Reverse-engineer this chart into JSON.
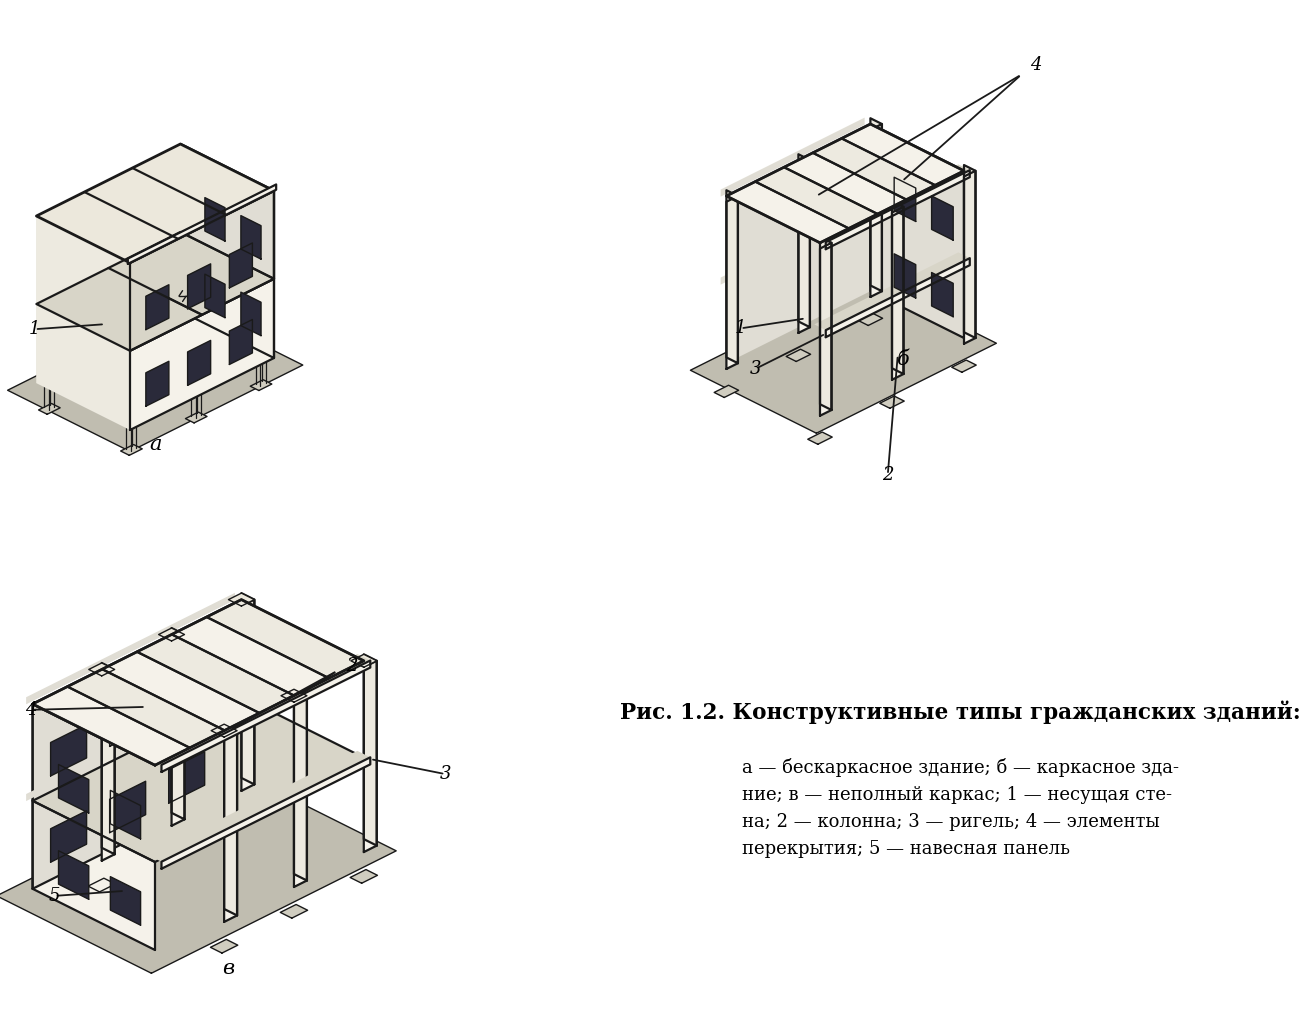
{
  "title": "Рис. 1.2. Конструктивные типы гражданских зданий:",
  "caption_line1": "а — бескаркасное здание; б — каркасное зда-",
  "caption_line2": "ние; в — неполный каркас; 1 — несущая сте-",
  "caption_line3": "на; 2 — колонна; 3 — ригель; 4 — элементы",
  "caption_line4": "перекрытия; 5 — навесная панель",
  "label_a": "а",
  "label_b": "б",
  "label_v": "в",
  "bg_color": "#ffffff",
  "line_color": "#1a1a1a",
  "win_color": "#2a2a3a",
  "wall_light": "#f5f2ea",
  "wall_mid": "#edeae0",
  "wall_dark": "#e0ddd4",
  "roof_color": "#ece8dc",
  "slab_color": "#d8d5c8",
  "shadow_color": "#c0bdb0",
  "base_color": "#d0cdc0"
}
